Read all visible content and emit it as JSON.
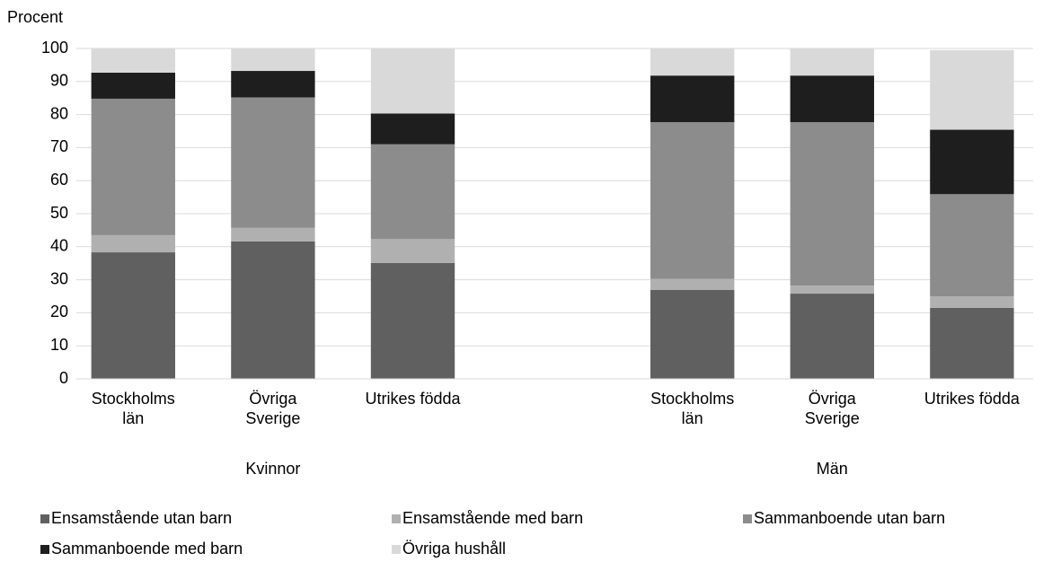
{
  "chart_data": {
    "type": "stacked_bar",
    "y_label": "Procent",
    "categories": [
      "Stockholms län",
      "Övriga Sverige",
      "Utrikes födda",
      null,
      "Stockholms län",
      "Övriga Sverige",
      "Utrikes födda"
    ],
    "group_labels": [
      "Kvinnor",
      "Män"
    ],
    "series": [
      {
        "name": "Ensamstående utan barn",
        "color": "#606060",
        "values": [
          38.3,
          41.6,
          35.1,
          null,
          26.9,
          25.8,
          21.5
        ]
      },
      {
        "name": "Ensamstående med barn",
        "color": "#b0b0b0",
        "values": [
          5.2,
          4.1,
          7.2,
          null,
          3.4,
          2.4,
          3.5
        ]
      },
      {
        "name": "Sammanboende utan barn",
        "color": "#8c8c8c",
        "values": [
          41.3,
          39.5,
          28.7,
          null,
          47.4,
          49.5,
          30.9
        ]
      },
      {
        "name": "Sammanboende med barn",
        "color": "#1e1e1e",
        "values": [
          7.9,
          8.0,
          9.3,
          null,
          14.1,
          14.1,
          19.5
        ]
      },
      {
        "name": "Övriga hushåll",
        "color": "#d9d9d9",
        "values": [
          7.3,
          6.8,
          19.7,
          null,
          8.2,
          8.2,
          24.1
        ]
      }
    ],
    "ylim": [
      0,
      100
    ],
    "yticks": [
      0,
      10,
      20,
      30,
      40,
      50,
      60,
      70,
      80,
      90,
      100
    ],
    "grid": true,
    "legend": "bottom"
  }
}
